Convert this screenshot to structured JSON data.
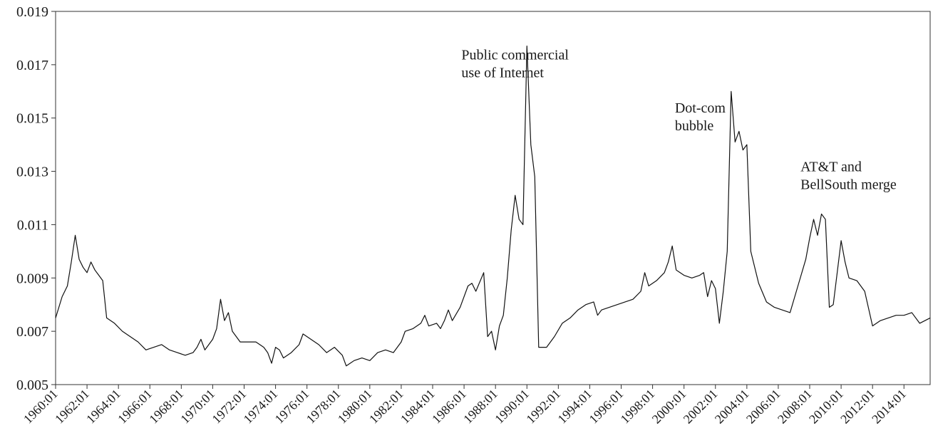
{
  "chart_data": {
    "type": "line",
    "title": "",
    "xlabel": "",
    "ylabel": "",
    "ylim": [
      0.005,
      0.019
    ],
    "xlim": [
      "1960:01",
      "2015:09"
    ],
    "grid": false,
    "legend": "none",
    "line_color": "#111111",
    "y_ticks": [
      "0.005",
      "0.007",
      "0.009",
      "0.011",
      "0.013",
      "0.015",
      "0.017",
      "0.019"
    ],
    "x_ticks": [
      "1960:01",
      "1962:01",
      "1964:01",
      "1966:01",
      "1968:01",
      "1970:01",
      "1972:01",
      "1974:01",
      "1976:01",
      "1978:01",
      "1980:01",
      "1982:01",
      "1984:01",
      "1986:01",
      "1988:01",
      "1990:01",
      "1992:01",
      "1994:01",
      "1996:01",
      "1998:01",
      "2000:01",
      "2002:01",
      "2004:01",
      "2006:01",
      "2008:01",
      "2010:01",
      "2012:01",
      "2014:01"
    ],
    "series": [
      {
        "points": [
          [
            "1960:01",
            0.0075
          ],
          [
            "1960:06",
            0.0083
          ],
          [
            "1960:10",
            0.0087
          ],
          [
            "1961:01",
            0.0096
          ],
          [
            "1961:04",
            0.0106
          ],
          [
            "1961:07",
            0.0097
          ],
          [
            "1961:10",
            0.0094
          ],
          [
            "1962:01",
            0.0092
          ],
          [
            "1962:04",
            0.0096
          ],
          [
            "1962:07",
            0.0093
          ],
          [
            "1962:10",
            0.0091
          ],
          [
            "1963:01",
            0.0089
          ],
          [
            "1963:04",
            0.0075
          ],
          [
            "1963:10",
            0.0073
          ],
          [
            "1964:04",
            0.007
          ],
          [
            "1964:10",
            0.0068
          ],
          [
            "1965:04",
            0.0066
          ],
          [
            "1965:10",
            0.0063
          ],
          [
            "1966:04",
            0.0064
          ],
          [
            "1966:10",
            0.0065
          ],
          [
            "1967:04",
            0.0063
          ],
          [
            "1967:10",
            0.0062
          ],
          [
            "1968:04",
            0.0061
          ],
          [
            "1968:10",
            0.0062
          ],
          [
            "1969:01",
            0.0064
          ],
          [
            "1969:04",
            0.0067
          ],
          [
            "1969:07",
            0.0063
          ],
          [
            "1969:10",
            0.0065
          ],
          [
            "1970:01",
            0.0067
          ],
          [
            "1970:04",
            0.0071
          ],
          [
            "1970:07",
            0.0082
          ],
          [
            "1970:10",
            0.0074
          ],
          [
            "1971:01",
            0.0077
          ],
          [
            "1971:04",
            0.007
          ],
          [
            "1971:07",
            0.0068
          ],
          [
            "1971:10",
            0.0066
          ],
          [
            "1972:04",
            0.0066
          ],
          [
            "1972:10",
            0.0066
          ],
          [
            "1973:04",
            0.0064
          ],
          [
            "1973:07",
            0.0062
          ],
          [
            "1973:10",
            0.0058
          ],
          [
            "1974:01",
            0.0064
          ],
          [
            "1974:04",
            0.0063
          ],
          [
            "1974:07",
            0.006
          ],
          [
            "1975:01",
            0.0062
          ],
          [
            "1975:07",
            0.0065
          ],
          [
            "1975:10",
            0.0069
          ],
          [
            "1976:04",
            0.0067
          ],
          [
            "1976:10",
            0.0065
          ],
          [
            "1977:04",
            0.0062
          ],
          [
            "1977:10",
            0.0064
          ],
          [
            "1978:04",
            0.0061
          ],
          [
            "1978:07",
            0.0057
          ],
          [
            "1979:01",
            0.0059
          ],
          [
            "1979:07",
            0.006
          ],
          [
            "1980:01",
            0.0059
          ],
          [
            "1980:07",
            0.0062
          ],
          [
            "1981:01",
            0.0063
          ],
          [
            "1981:07",
            0.0062
          ],
          [
            "1982:01",
            0.0066
          ],
          [
            "1982:04",
            0.007
          ],
          [
            "1982:10",
            0.0071
          ],
          [
            "1983:04",
            0.0073
          ],
          [
            "1983:07",
            0.0076
          ],
          [
            "1983:10",
            0.0072
          ],
          [
            "1984:04",
            0.0073
          ],
          [
            "1984:07",
            0.0071
          ],
          [
            "1984:10",
            0.0074
          ],
          [
            "1985:01",
            0.0078
          ],
          [
            "1985:04",
            0.0074
          ],
          [
            "1985:10",
            0.0079
          ],
          [
            "1986:04",
            0.0087
          ],
          [
            "1986:07",
            0.0088
          ],
          [
            "1986:10",
            0.0085
          ],
          [
            "1987:04",
            0.0092
          ],
          [
            "1987:07",
            0.0068
          ],
          [
            "1987:10",
            0.007
          ],
          [
            "1988:01",
            0.0063
          ],
          [
            "1988:04",
            0.0072
          ],
          [
            "1988:07",
            0.0076
          ],
          [
            "1988:10",
            0.009
          ],
          [
            "1989:01",
            0.0108
          ],
          [
            "1989:04",
            0.0121
          ],
          [
            "1989:07",
            0.0112
          ],
          [
            "1989:10",
            0.011
          ],
          [
            "1990:01",
            0.0177
          ],
          [
            "1990:04",
            0.014
          ],
          [
            "1990:07",
            0.0128
          ],
          [
            "1990:10",
            0.0064
          ],
          [
            "1991:04",
            0.0064
          ],
          [
            "1991:10",
            0.0068
          ],
          [
            "1992:04",
            0.0073
          ],
          [
            "1992:10",
            0.0075
          ],
          [
            "1993:04",
            0.0078
          ],
          [
            "1993:10",
            0.008
          ],
          [
            "1994:04",
            0.0081
          ],
          [
            "1994:07",
            0.0076
          ],
          [
            "1994:10",
            0.0078
          ],
          [
            "1995:04",
            0.0079
          ],
          [
            "1995:10",
            0.008
          ],
          [
            "1996:04",
            0.0081
          ],
          [
            "1996:10",
            0.0082
          ],
          [
            "1997:04",
            0.0085
          ],
          [
            "1997:07",
            0.0092
          ],
          [
            "1997:10",
            0.0087
          ],
          [
            "1998:04",
            0.0089
          ],
          [
            "1998:10",
            0.0092
          ],
          [
            "1999:01",
            0.0096
          ],
          [
            "1999:04",
            0.0102
          ],
          [
            "1999:07",
            0.0093
          ],
          [
            "2000:01",
            0.0091
          ],
          [
            "2000:07",
            0.009
          ],
          [
            "2001:01",
            0.0091
          ],
          [
            "2001:04",
            0.0092
          ],
          [
            "2001:07",
            0.0083
          ],
          [
            "2001:10",
            0.0089
          ],
          [
            "2002:01",
            0.0086
          ],
          [
            "2002:04",
            0.0073
          ],
          [
            "2002:07",
            0.0085
          ],
          [
            "2002:10",
            0.01
          ],
          [
            "2003:01",
            0.016
          ],
          [
            "2003:04",
            0.0141
          ],
          [
            "2003:07",
            0.0145
          ],
          [
            "2003:10",
            0.0138
          ],
          [
            "2004:01",
            0.014
          ],
          [
            "2004:04",
            0.01
          ],
          [
            "2004:10",
            0.0088
          ],
          [
            "2005:04",
            0.0081
          ],
          [
            "2005:10",
            0.0079
          ],
          [
            "2006:04",
            0.0078
          ],
          [
            "2006:10",
            0.0077
          ],
          [
            "2007:04",
            0.0087
          ],
          [
            "2007:10",
            0.0097
          ],
          [
            "2008:01",
            0.0105
          ],
          [
            "2008:04",
            0.0112
          ],
          [
            "2008:07",
            0.0106
          ],
          [
            "2008:10",
            0.0114
          ],
          [
            "2009:01",
            0.0112
          ],
          [
            "2009:04",
            0.0079
          ],
          [
            "2009:07",
            0.008
          ],
          [
            "2009:10",
            0.0092
          ],
          [
            "2010:01",
            0.0104
          ],
          [
            "2010:04",
            0.0096
          ],
          [
            "2010:07",
            0.009
          ],
          [
            "2011:01",
            0.0089
          ],
          [
            "2011:07",
            0.0085
          ],
          [
            "2012:01",
            0.0072
          ],
          [
            "2012:07",
            0.0074
          ],
          [
            "2013:01",
            0.0075
          ],
          [
            "2013:07",
            0.0076
          ],
          [
            "2014:01",
            0.0076
          ],
          [
            "2014:07",
            0.0077
          ],
          [
            "2015:01",
            0.0073
          ],
          [
            "2015:09",
            0.0075
          ]
        ]
      }
    ],
    "annotations": [
      {
        "lines": [
          "Public commercial",
          "use of Internet"
        ],
        "at": [
          "1985:11",
          0.0172
        ]
      },
      {
        "lines": [
          "Dot-com",
          "bubble"
        ],
        "at": [
          "1999:06",
          0.0152
        ]
      },
      {
        "lines": [
          "AT&T  and",
          "BellSouth merge"
        ],
        "at": [
          "2007:06",
          0.013
        ]
      }
    ]
  }
}
